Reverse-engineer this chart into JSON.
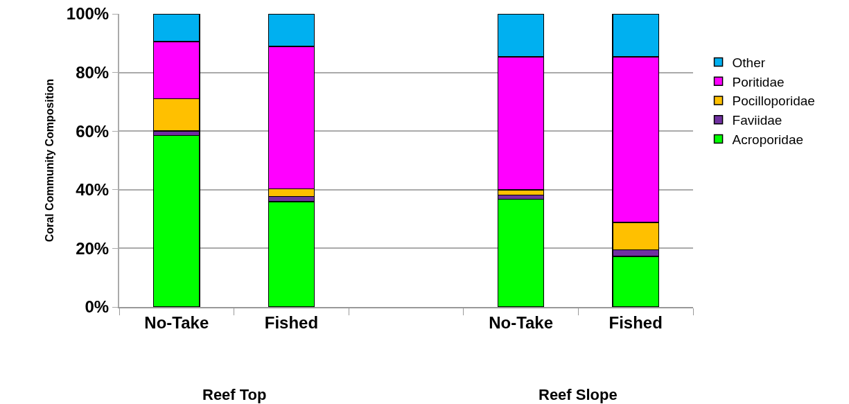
{
  "chart_data": {
    "type": "bar",
    "stacked": true,
    "categories": [
      "No-Take",
      "Fished",
      null,
      "No-Take",
      "Fished"
    ],
    "series": [
      {
        "name": "Acroporidae",
        "color": "#00ff00",
        "values": [
          58.5,
          35.9,
          null,
          36.8,
          17.3
        ]
      },
      {
        "name": "Faviidae",
        "color": "#7030a0",
        "values": [
          1.5,
          1.8,
          null,
          1.4,
          2.2
        ]
      },
      {
        "name": "Pocilloporidae",
        "color": "#ffc000",
        "values": [
          11.0,
          2.6,
          null,
          1.8,
          9.3
        ]
      },
      {
        "name": "Poritidae",
        "color": "#ff00ff",
        "values": [
          19.6,
          48.6,
          null,
          45.3,
          56.5
        ]
      },
      {
        "name": "Other",
        "color": "#00b0f0",
        "values": [
          9.4,
          11.1,
          null,
          14.7,
          14.7
        ]
      }
    ],
    "ylabel": "Coral Community Composition",
    "annotations": [
      "Reef Top",
      "Reef Slope"
    ],
    "ylim": [
      0,
      100
    ],
    "yticks": [
      {
        "value": 0,
        "label": "0%"
      },
      {
        "value": 20,
        "label": "20%"
      },
      {
        "value": 40,
        "label": "40%"
      },
      {
        "value": 60,
        "label": "60%"
      },
      {
        "value": 80,
        "label": "80%"
      },
      {
        "value": 100,
        "label": "100%"
      }
    ],
    "grid": "y",
    "legend": "right"
  }
}
